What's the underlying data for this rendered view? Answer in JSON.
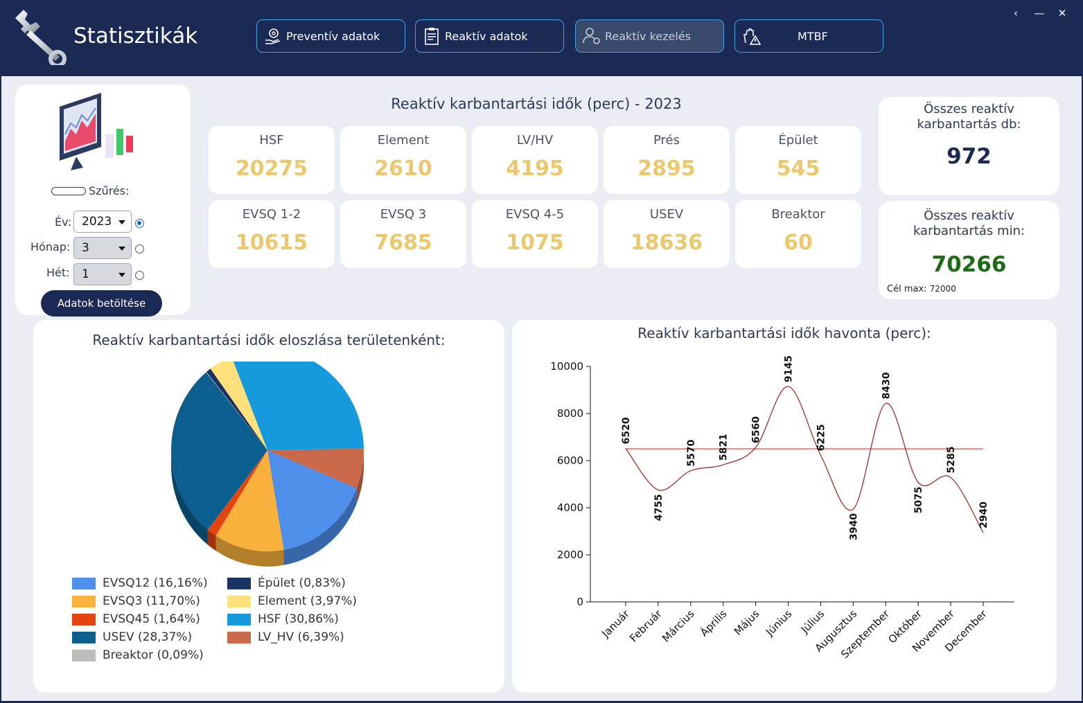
{
  "app": {
    "title": "Statisztikák"
  },
  "nav": [
    {
      "label": "Preventív adatok",
      "icon": "gear-hand-icon",
      "active": false
    },
    {
      "label": "Reaktív adatok",
      "icon": "clipboard-icon",
      "active": false
    },
    {
      "label": "Reaktív kezelés",
      "icon": "user-gear-icon",
      "active": true
    },
    {
      "label": "MTBF",
      "icon": "hand-warning-icon",
      "active": false
    }
  ],
  "window_controls": {
    "back": "‹",
    "minimize": "—",
    "close": "✕"
  },
  "filter": {
    "title": "Szűrés:",
    "year_label": "Év:",
    "year_value": "2023",
    "month_label": "Hónap:",
    "month_value": "3",
    "week_label": "Hét:",
    "week_value": "1",
    "selected_radio": "year",
    "load_button": "Adatok betöltése"
  },
  "kpi_section": {
    "title": "Reaktív karbantartási idők (perc) - 2023",
    "items": [
      {
        "label": "HSF",
        "value": "20275"
      },
      {
        "label": "Element",
        "value": "2610"
      },
      {
        "label": "LV/HV",
        "value": "4195"
      },
      {
        "label": "Prés",
        "value": "2895"
      },
      {
        "label": "Épület",
        "value": "545"
      },
      {
        "label": "EVSQ 1-2",
        "value": "10615"
      },
      {
        "label": "EVSQ 3",
        "value": "7685"
      },
      {
        "label": "EVSQ 4-5",
        "value": "1075"
      },
      {
        "label": "USEV",
        "value": "18636"
      },
      {
        "label": "Breaktor",
        "value": "60"
      }
    ],
    "value_color": "#ecc86d"
  },
  "totals": {
    "count_label_line1": "Összes reaktív",
    "count_label_line2": "karbantartás db:",
    "count_value": "972",
    "count_color": "#1b2a55",
    "min_label_line1": "Összes reaktív",
    "min_label_line2": "karbantartás min:",
    "min_value": "70266",
    "min_color": "#1e6b16",
    "target_label": "Cél max:",
    "target_value": "72000"
  },
  "chart_data": [
    {
      "type": "pie",
      "title": "Reaktív karbantartási idők eloszlása területenként:",
      "slices": [
        {
          "name": "EVSQ12",
          "label": "EVSQ12 (16,16%)",
          "value": 16.16,
          "color": "#4d8fea"
        },
        {
          "name": "EVSQ3",
          "label": "EVSQ3 (11,70%)",
          "value": 11.7,
          "color": "#f9b13c"
        },
        {
          "name": "EVSQ45",
          "label": "EVSQ45 (1,64%)",
          "value": 1.64,
          "color": "#e2450f"
        },
        {
          "name": "USEV",
          "label": "USEV (28,37%)",
          "value": 28.37,
          "color": "#0b5f8e"
        },
        {
          "name": "Breaktor",
          "label": "Breaktor (0,09%)",
          "value": 0.09,
          "color": "#bdbdbd"
        },
        {
          "name": "Épület",
          "label": "Épület (0,83%)",
          "value": 0.83,
          "color": "#1b3360"
        },
        {
          "name": "Element",
          "label": "Element (3,97%)",
          "value": 3.97,
          "color": "#ffe07a"
        },
        {
          "name": "HSF",
          "label": "HSF (30,86%)",
          "value": 30.86,
          "color": "#159ade"
        },
        {
          "name": "LV_HV",
          "label": "LV_HV (6,39%)",
          "value": 6.39,
          "color": "#c9694a"
        }
      ]
    },
    {
      "type": "line",
      "title": "Reaktív karbantartási idők havonta (perc):",
      "categories": [
        "Január",
        "Február",
        "Március",
        "Április",
        "Május",
        "Június",
        "Július",
        "Augusztus",
        "Szeptember",
        "Október",
        "November",
        "December"
      ],
      "series": [
        {
          "values": [
            6520,
            4755,
            5570,
            5821,
            6560,
            9145,
            6225,
            3940,
            8430,
            5075,
            5285,
            2940
          ],
          "color": "#9b1b1b",
          "smooth": true
        }
      ],
      "reference_line": {
        "value": 6500,
        "color": "#ef4444"
      },
      "ylim": [
        0,
        10000
      ],
      "yticks": [
        0,
        2000,
        4000,
        6000,
        8000,
        10000
      ],
      "grid": false
    }
  ]
}
